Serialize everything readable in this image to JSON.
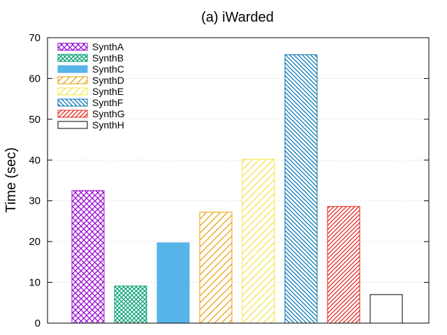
{
  "chart_data": {
    "type": "bar",
    "title": "(a) iWarded",
    "xlabel": "",
    "ylabel": "Time (sec)",
    "ylim": [
      0,
      70
    ],
    "yticks": [
      0,
      10,
      20,
      30,
      40,
      50,
      60,
      70
    ],
    "grid": true,
    "legend_position": "top-left",
    "series": [
      {
        "name": "SynthA",
        "value": 32.5,
        "color": "#9400d3",
        "pattern": "crosshatch"
      },
      {
        "name": "SynthB",
        "value": 9.1,
        "color": "#009e73",
        "pattern": "crosshatch-fine"
      },
      {
        "name": "SynthC",
        "value": 19.7,
        "color": "#56b4e9",
        "pattern": "solid"
      },
      {
        "name": "SynthD",
        "value": 27.2,
        "color": "#e69f00",
        "pattern": "diagonal-wide"
      },
      {
        "name": "SynthE",
        "value": 40.2,
        "color": "#f0e442",
        "pattern": "diagonal-wide"
      },
      {
        "name": "SynthF",
        "value": 65.8,
        "color": "#0072b2",
        "pattern": "backdiagonal"
      },
      {
        "name": "SynthG",
        "value": 28.6,
        "color": "#e51e10",
        "pattern": "diagonal"
      },
      {
        "name": "SynthH",
        "value": 7.0,
        "color": "#000000",
        "pattern": "empty"
      }
    ]
  }
}
